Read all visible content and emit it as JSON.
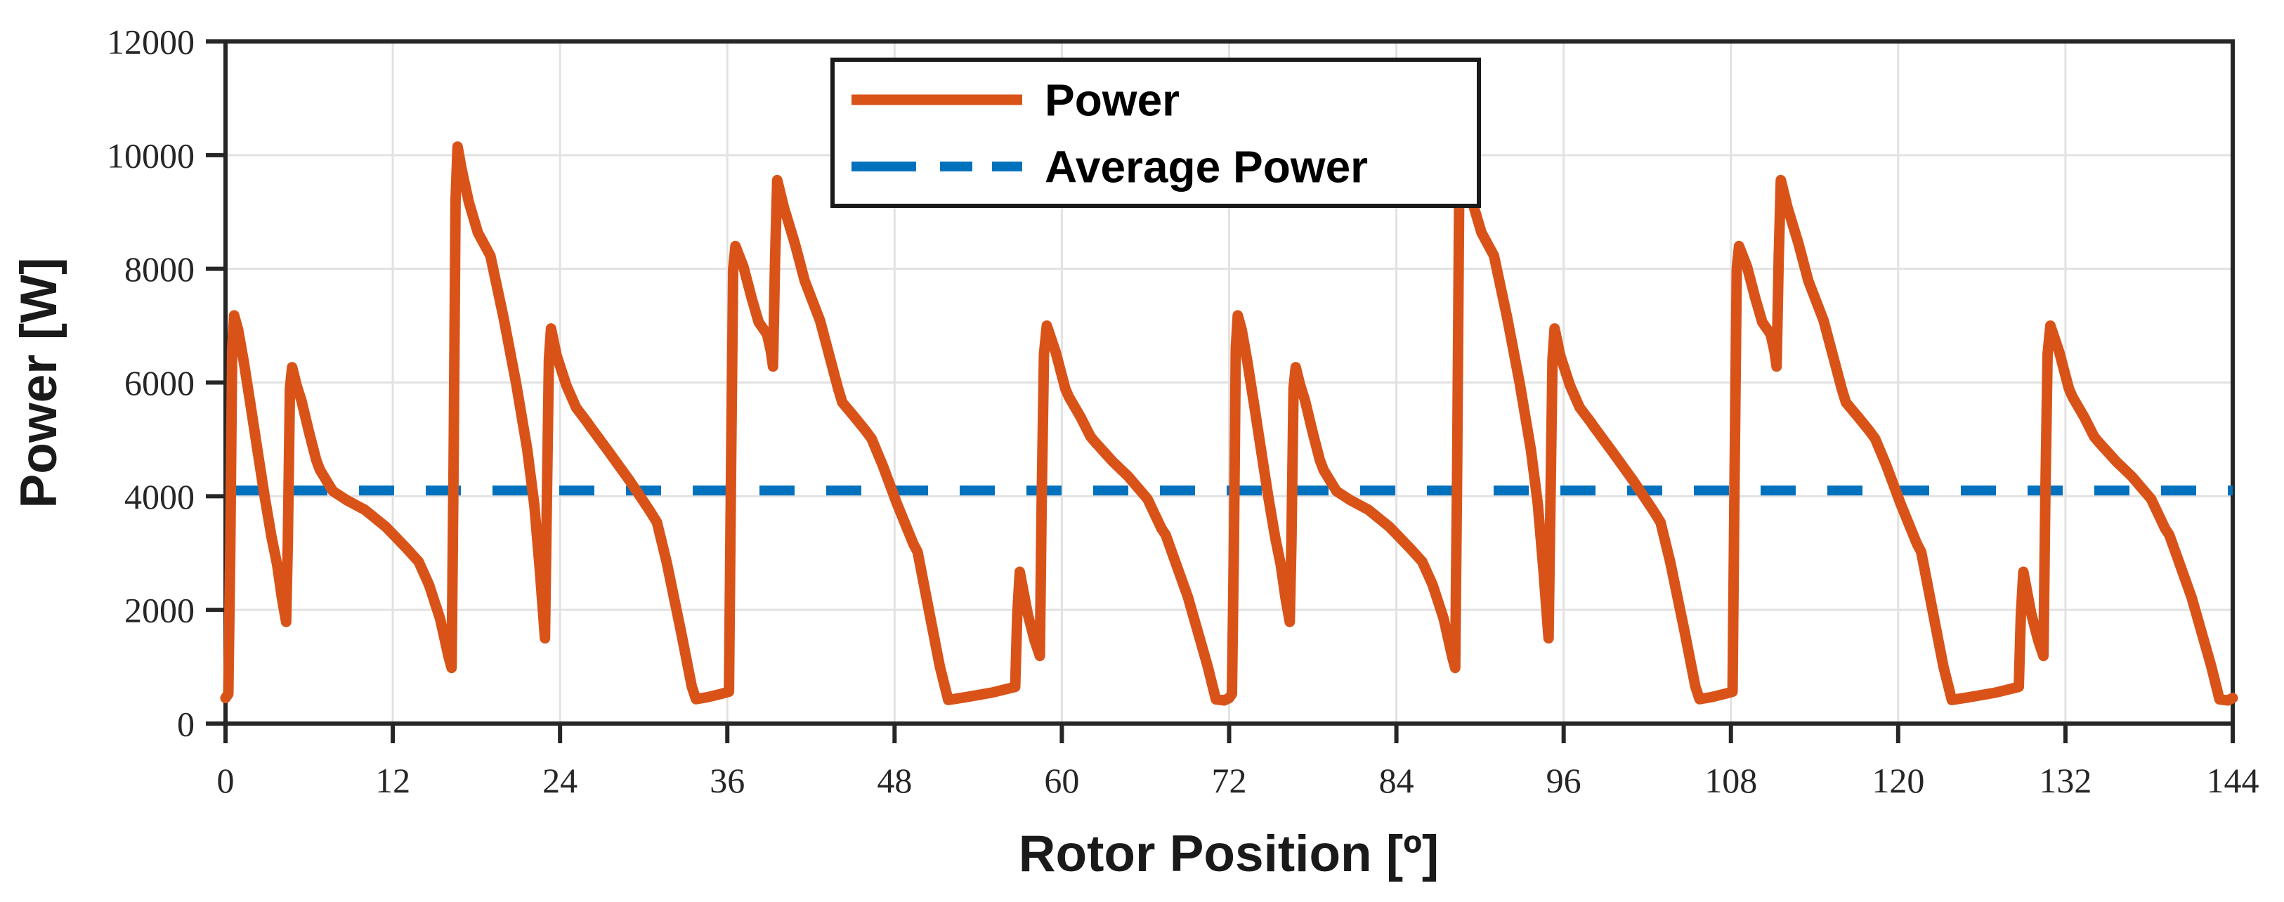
{
  "figure": {
    "background": "#ffffff",
    "axis_color": "#262626",
    "grid_color": "#e2e2e2",
    "power_color": "#d95319",
    "average_color": "#0072bd"
  },
  "legend": {
    "power_label": "Power",
    "average_label": "Average Power"
  },
  "chart_data": {
    "type": "line",
    "title": "",
    "xlabel": "Rotor Position [º]",
    "ylabel": "Power [W]",
    "xlim": [
      0,
      144
    ],
    "ylim": [
      0,
      12000
    ],
    "x_ticks": [
      0,
      12,
      24,
      36,
      48,
      60,
      72,
      84,
      96,
      108,
      120,
      132,
      144
    ],
    "y_ticks": [
      0,
      2000,
      4000,
      6000,
      8000,
      10000,
      12000
    ],
    "grid": true,
    "legend_position": "top-center",
    "series": [
      {
        "name": "Power",
        "color": "#d95319",
        "style": "solid",
        "points": [
          [
            0,
            450
          ],
          [
            0.2,
            520
          ],
          [
            0.34,
            3000
          ],
          [
            0.48,
            6600
          ],
          [
            0.62,
            7180
          ],
          [
            0.9,
            6930
          ],
          [
            1.3,
            6380
          ],
          [
            1.8,
            5600
          ],
          [
            2.3,
            4800
          ],
          [
            2.8,
            4000
          ],
          [
            3.3,
            3280
          ],
          [
            3.7,
            2800
          ],
          [
            4.05,
            2200
          ],
          [
            4.35,
            1790
          ],
          [
            4.47,
            3200
          ],
          [
            4.62,
            5900
          ],
          [
            4.78,
            6270
          ],
          [
            5.1,
            5950
          ],
          [
            5.45,
            5680
          ],
          [
            6,
            5120
          ],
          [
            6.5,
            4640
          ],
          [
            6.78,
            4460
          ],
          [
            7.7,
            4090
          ],
          [
            8.7,
            3930
          ],
          [
            10,
            3760
          ],
          [
            11.5,
            3460
          ],
          [
            13,
            3080
          ],
          [
            13.85,
            2850
          ],
          [
            14.6,
            2440
          ],
          [
            15.4,
            1840
          ],
          [
            16,
            1180
          ],
          [
            16.22,
            980
          ],
          [
            16.36,
            4500
          ],
          [
            16.5,
            9200
          ],
          [
            16.65,
            10150
          ],
          [
            16.95,
            9740
          ],
          [
            17.45,
            9180
          ],
          [
            18.1,
            8640
          ],
          [
            19,
            8230
          ],
          [
            19.95,
            7140
          ],
          [
            20.85,
            5980
          ],
          [
            21.65,
            4820
          ],
          [
            22.15,
            3850
          ],
          [
            22.55,
            2700
          ],
          [
            22.92,
            1500
          ],
          [
            23.06,
            4000
          ],
          [
            23.2,
            6400
          ],
          [
            23.35,
            6950
          ],
          [
            23.75,
            6480
          ],
          [
            24.45,
            5950
          ],
          [
            25.15,
            5560
          ],
          [
            25.95,
            5300
          ],
          [
            26.15,
            5230
          ],
          [
            27.5,
            4780
          ],
          [
            29,
            4270
          ],
          [
            30.45,
            3740
          ],
          [
            30.95,
            3540
          ],
          [
            31.65,
            2840
          ],
          [
            32.65,
            1650
          ],
          [
            33.45,
            650
          ],
          [
            33.75,
            430
          ],
          [
            34.6,
            465
          ],
          [
            35.6,
            525
          ],
          [
            36.12,
            560
          ],
          [
            36.27,
            4500
          ],
          [
            36.42,
            8000
          ],
          [
            36.58,
            8400
          ],
          [
            37.15,
            8040
          ],
          [
            37.75,
            7480
          ],
          [
            38.25,
            7060
          ],
          [
            38.85,
            6850
          ],
          [
            39.12,
            6550
          ],
          [
            39.28,
            6280
          ],
          [
            39.43,
            8200
          ],
          [
            39.58,
            9560
          ],
          [
            40.05,
            9090
          ],
          [
            40.85,
            8440
          ],
          [
            41.55,
            7790
          ],
          [
            42.65,
            7090
          ],
          [
            43.95,
            5890
          ],
          [
            44.25,
            5650
          ],
          [
            45.1,
            5400
          ],
          [
            45.9,
            5160
          ],
          [
            46.35,
            5010
          ],
          [
            47.15,
            4540
          ],
          [
            48.15,
            3880
          ],
          [
            49.35,
            3160
          ],
          [
            49.65,
            3020
          ],
          [
            50.35,
            2130
          ],
          [
            51.25,
            1000
          ],
          [
            51.85,
            415
          ],
          [
            53,
            460
          ],
          [
            55,
            545
          ],
          [
            56.65,
            645
          ],
          [
            56.8,
            1900
          ],
          [
            56.98,
            2670
          ],
          [
            57.55,
            1930
          ],
          [
            58.05,
            1460
          ],
          [
            58.42,
            1190
          ],
          [
            58.56,
            4000
          ],
          [
            58.72,
            6500
          ],
          [
            58.92,
            7000
          ],
          [
            59.55,
            6540
          ],
          [
            60.25,
            5890
          ],
          [
            60.5,
            5750
          ],
          [
            61.35,
            5390
          ],
          [
            62.05,
            5050
          ],
          [
            62.3,
            4975
          ],
          [
            63.65,
            4610
          ],
          [
            64.75,
            4350
          ],
          [
            66.15,
            3950
          ],
          [
            67.15,
            3430
          ],
          [
            67.45,
            3320
          ],
          [
            69.05,
            2220
          ],
          [
            70.45,
            1020
          ],
          [
            71.05,
            425
          ],
          [
            71.65,
            408
          ],
          [
            72,
            450
          ],
          [
            72.2,
            520
          ],
          [
            72.34,
            3000
          ],
          [
            72.48,
            6600
          ],
          [
            72.62,
            7180
          ],
          [
            72.9,
            6930
          ],
          [
            73.3,
            6380
          ],
          [
            73.8,
            5600
          ],
          [
            74.3,
            4800
          ],
          [
            74.8,
            4000
          ],
          [
            75.3,
            3280
          ],
          [
            75.7,
            2800
          ],
          [
            76.05,
            2200
          ],
          [
            76.35,
            1790
          ],
          [
            76.47,
            3200
          ],
          [
            76.62,
            5900
          ],
          [
            76.78,
            6270
          ],
          [
            77.1,
            5950
          ],
          [
            77.45,
            5680
          ],
          [
            78,
            5120
          ],
          [
            78.5,
            4640
          ],
          [
            78.78,
            4460
          ],
          [
            79.7,
            4090
          ],
          [
            80.7,
            3930
          ],
          [
            82,
            3760
          ],
          [
            83.5,
            3460
          ],
          [
            85,
            3080
          ],
          [
            85.85,
            2850
          ],
          [
            86.6,
            2440
          ],
          [
            87.4,
            1840
          ],
          [
            88,
            1180
          ],
          [
            88.22,
            980
          ],
          [
            88.36,
            4500
          ],
          [
            88.5,
            9200
          ],
          [
            88.65,
            10150
          ],
          [
            88.95,
            9740
          ],
          [
            89.45,
            9180
          ],
          [
            90.1,
            8640
          ],
          [
            91,
            8230
          ],
          [
            91.95,
            7140
          ],
          [
            92.85,
            5980
          ],
          [
            93.65,
            4820
          ],
          [
            94.15,
            3850
          ],
          [
            94.55,
            2700
          ],
          [
            94.92,
            1500
          ],
          [
            95.06,
            4000
          ],
          [
            95.2,
            6400
          ],
          [
            95.35,
            6950
          ],
          [
            95.75,
            6480
          ],
          [
            96.45,
            5950
          ],
          [
            97.15,
            5560
          ],
          [
            97.95,
            5300
          ],
          [
            98.15,
            5230
          ],
          [
            99.5,
            4780
          ],
          [
            101,
            4270
          ],
          [
            102.45,
            3740
          ],
          [
            102.95,
            3540
          ],
          [
            103.65,
            2840
          ],
          [
            104.65,
            1650
          ],
          [
            105.45,
            650
          ],
          [
            105.75,
            430
          ],
          [
            106.6,
            465
          ],
          [
            107.6,
            525
          ],
          [
            108.12,
            560
          ],
          [
            108.27,
            4500
          ],
          [
            108.42,
            8000
          ],
          [
            108.58,
            8400
          ],
          [
            109.15,
            8040
          ],
          [
            109.75,
            7480
          ],
          [
            110.25,
            7060
          ],
          [
            110.85,
            6850
          ],
          [
            111.12,
            6550
          ],
          [
            111.28,
            6280
          ],
          [
            111.43,
            8200
          ],
          [
            111.58,
            9560
          ],
          [
            112.05,
            9090
          ],
          [
            112.85,
            8440
          ],
          [
            113.55,
            7790
          ],
          [
            114.65,
            7090
          ],
          [
            115.95,
            5890
          ],
          [
            116.25,
            5650
          ],
          [
            117.1,
            5400
          ],
          [
            117.9,
            5160
          ],
          [
            118.35,
            5010
          ],
          [
            119.15,
            4540
          ],
          [
            120.15,
            3880
          ],
          [
            121.35,
            3160
          ],
          [
            121.65,
            3020
          ],
          [
            122.35,
            2130
          ],
          [
            123.25,
            1000
          ],
          [
            123.85,
            415
          ],
          [
            125,
            460
          ],
          [
            127,
            545
          ],
          [
            128.65,
            645
          ],
          [
            128.8,
            1900
          ],
          [
            128.98,
            2670
          ],
          [
            129.55,
            1930
          ],
          [
            130.05,
            1460
          ],
          [
            130.42,
            1190
          ],
          [
            130.56,
            4000
          ],
          [
            130.72,
            6500
          ],
          [
            130.92,
            7000
          ],
          [
            131.55,
            6540
          ],
          [
            132.25,
            5890
          ],
          [
            132.5,
            5750
          ],
          [
            133.35,
            5390
          ],
          [
            134.05,
            5050
          ],
          [
            134.3,
            4975
          ],
          [
            135.65,
            4610
          ],
          [
            136.75,
            4350
          ],
          [
            138.15,
            3950
          ],
          [
            139.15,
            3430
          ],
          [
            139.45,
            3320
          ],
          [
            141.05,
            2220
          ],
          [
            142.45,
            1020
          ],
          [
            143.05,
            425
          ],
          [
            143.65,
            408
          ],
          [
            144,
            450
          ]
        ]
      },
      {
        "name": "Average Power",
        "color": "#0072bd",
        "style": "dashed",
        "value": 4100
      }
    ]
  }
}
